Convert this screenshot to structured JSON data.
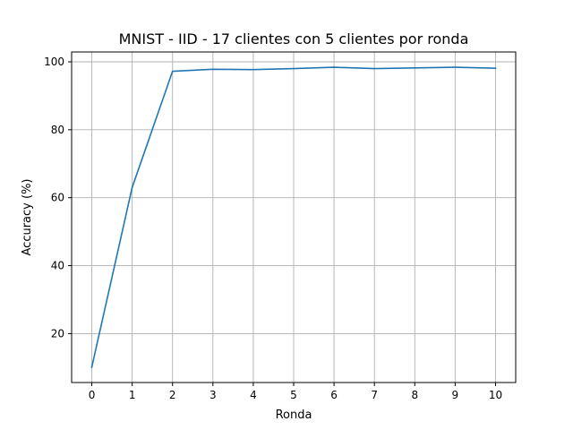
{
  "chart_data": {
    "type": "line",
    "title": "MNIST - IID - 17 clientes con 5 clientes por ronda",
    "xlabel": "Ronda",
    "ylabel": "Accuracy (%)",
    "xlim": [
      -0.5,
      10.5
    ],
    "ylim": [
      5.6,
      102.9
    ],
    "xticks": [
      0,
      1,
      2,
      3,
      4,
      5,
      6,
      7,
      8,
      9,
      10
    ],
    "yticks": [
      20,
      40,
      60,
      80,
      100
    ],
    "grid": true,
    "series": [
      {
        "color": "#1f77b4",
        "x": [
          0,
          1,
          2,
          3,
          4,
          5,
          6,
          7,
          8,
          9,
          10
        ],
        "y": [
          10.1,
          63.0,
          97.2,
          97.8,
          97.7,
          98.0,
          98.4,
          98.0,
          98.2,
          98.4,
          98.1
        ]
      }
    ]
  }
}
